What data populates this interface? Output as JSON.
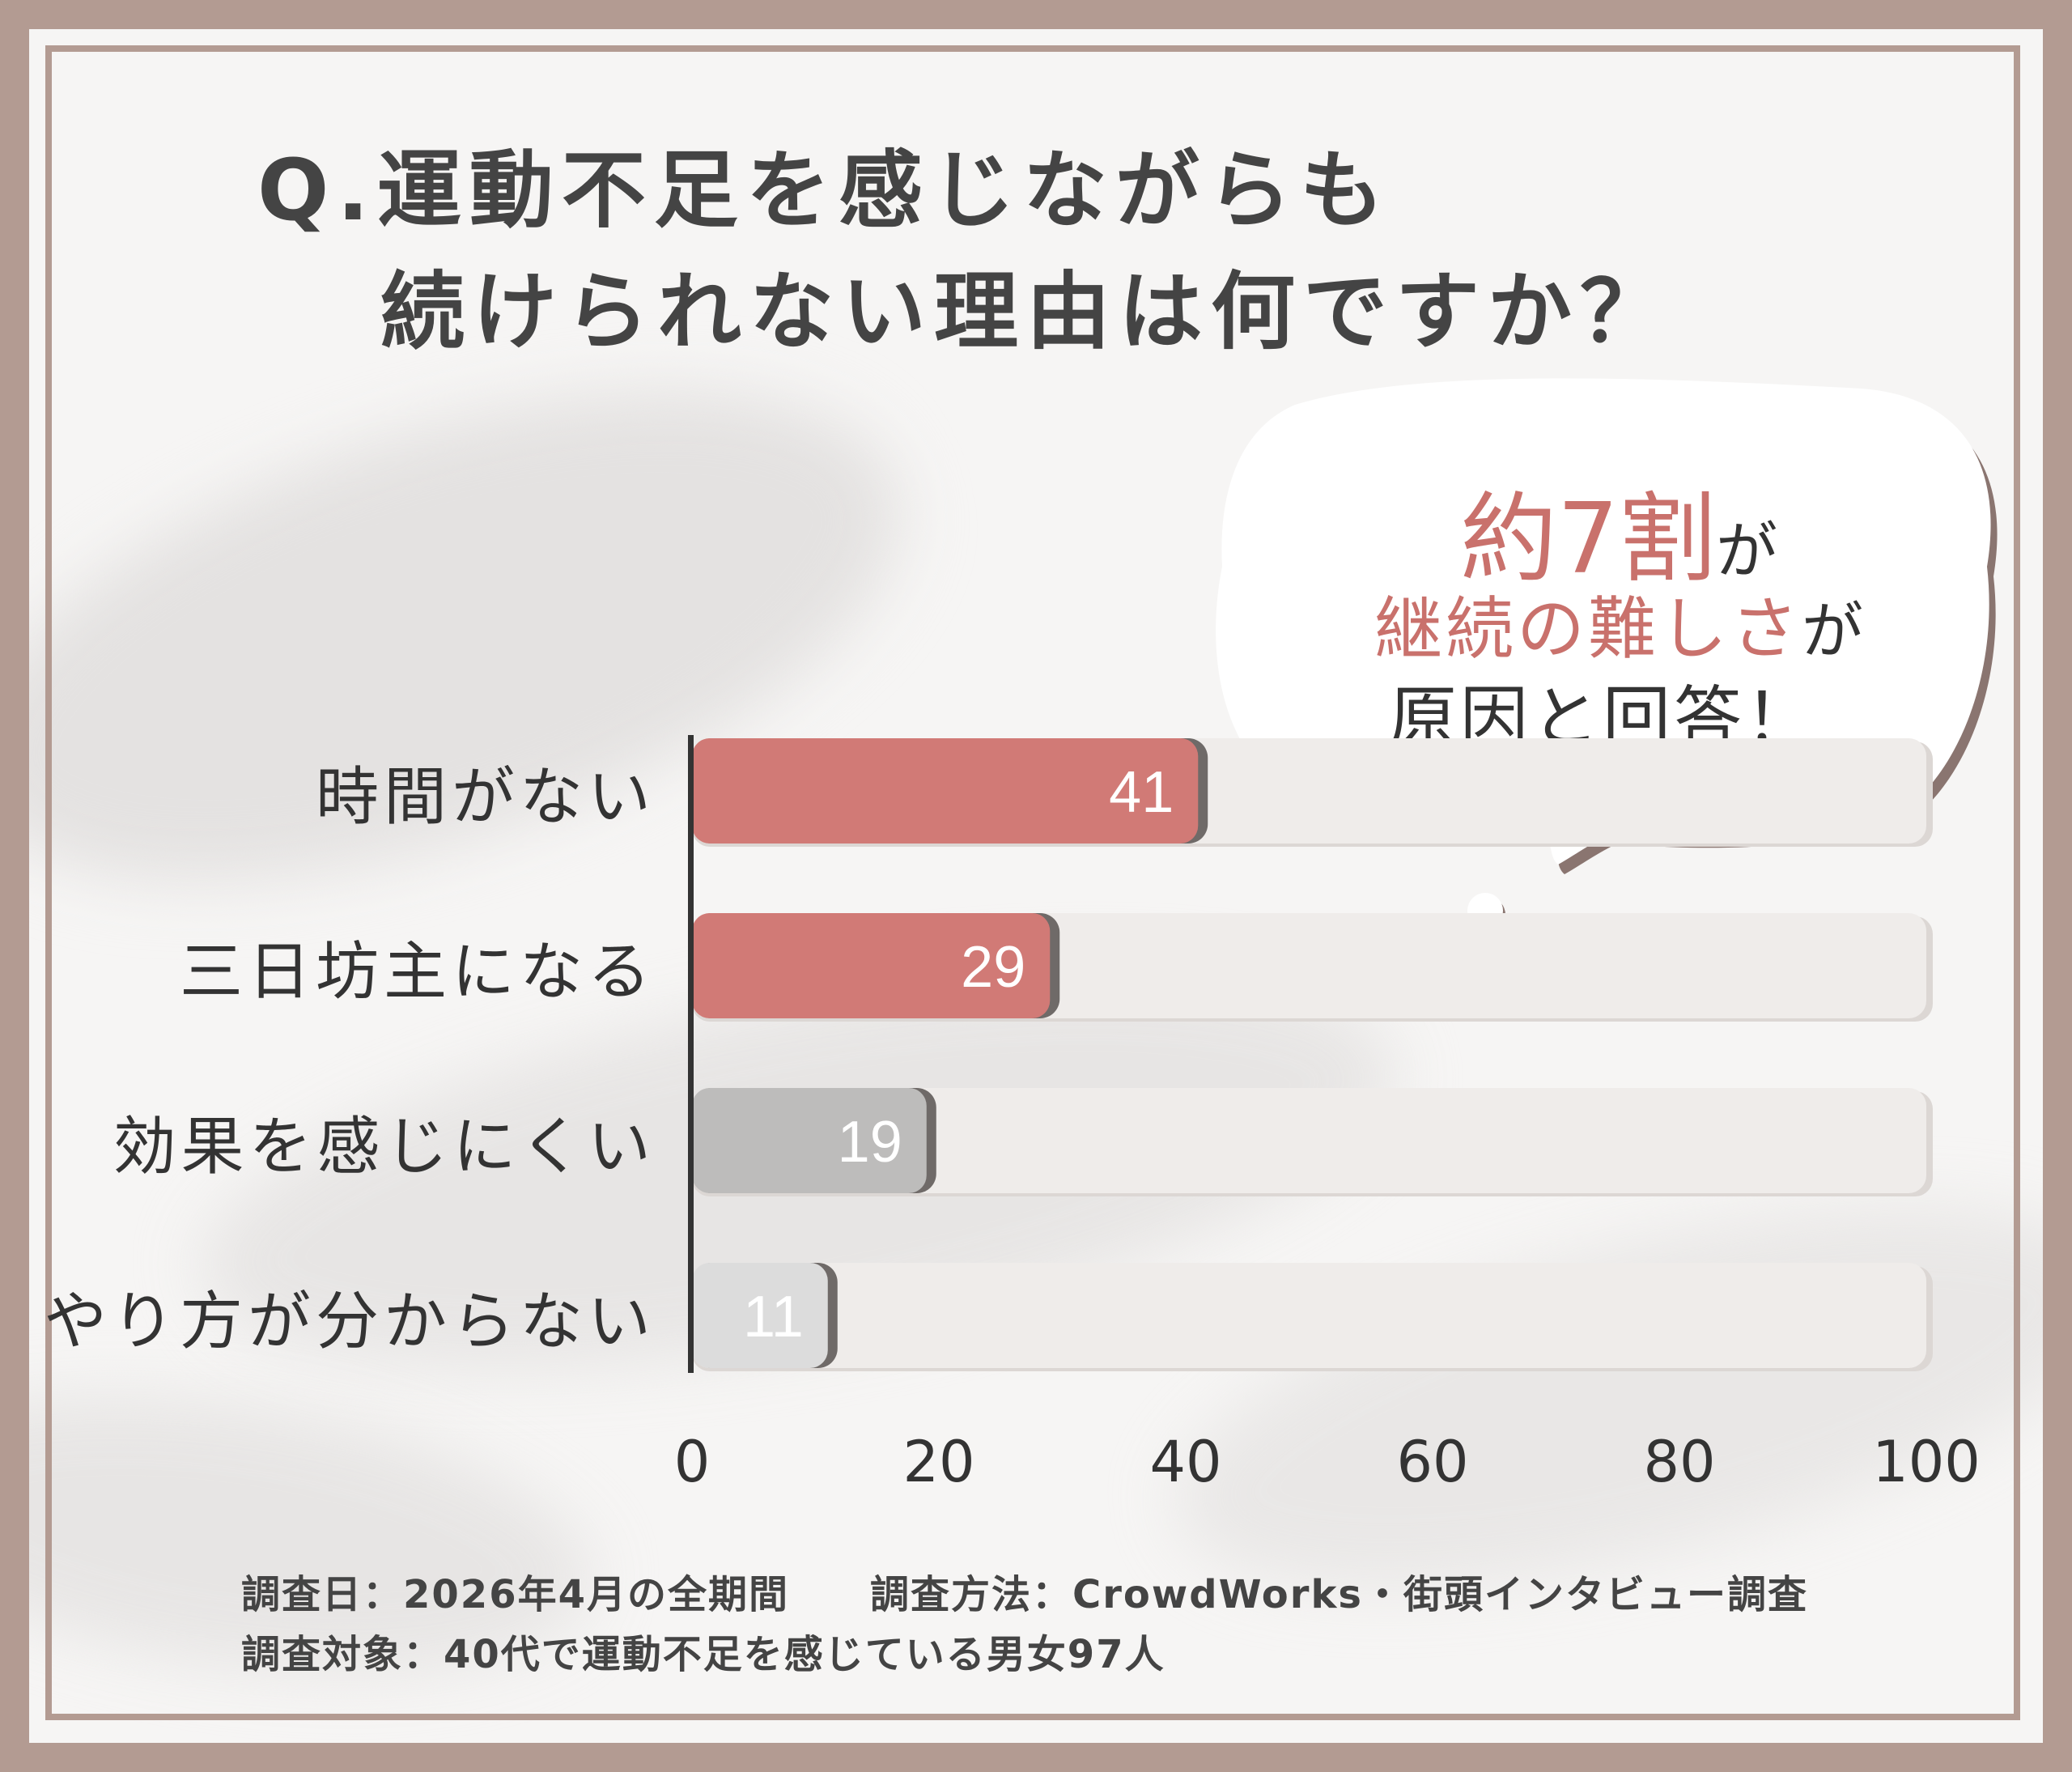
{
  "title": {
    "line1": "Q.運動不足を感じながらも",
    "line2": "続けられない理由は何ですか？"
  },
  "callout": {
    "highlight1": "約7割",
    "suffix1": "が",
    "highlight2": "継続の難しさ",
    "suffix2": "が",
    "line3": "原因と回答！"
  },
  "chart_data": {
    "type": "bar",
    "orientation": "horizontal",
    "categories": [
      "時間がない",
      "三日坊主になる",
      "効果を感じにくい",
      "やり方が分からない"
    ],
    "values": [
      41,
      29,
      19,
      11
    ],
    "bar_colors": [
      "#d17a76",
      "#d17a76",
      "#bdbcbb",
      "#dcdcdc"
    ],
    "xlim": [
      0,
      100
    ],
    "xticks": [
      "0",
      "20",
      "40",
      "60",
      "80",
      "100"
    ],
    "grid": false,
    "title": "Q.運動不足を感じながらも続けられない理由は何ですか？"
  },
  "footer": {
    "line1": "調査日：2026年4月の全期間　　調査方法：CrowdWorks・街頭インタビュー調査",
    "line2": "調査対象：40代で運動不足を感じている男女97人"
  },
  "colors": {
    "frame": "#b39b92",
    "accent": "#d17a76",
    "highlight_text": "#c9716c",
    "track": "#efecea"
  }
}
